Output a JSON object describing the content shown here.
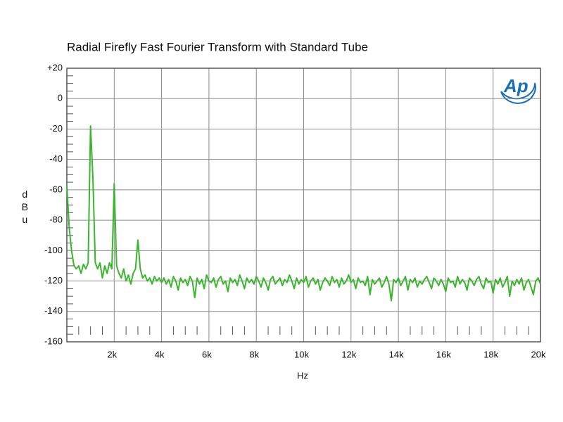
{
  "chart_data": {
    "type": "line",
    "title": "Radial Firefly Fast Fourier Transform with Standard Tube",
    "x_label": "Hz",
    "y_label": "dBu",
    "logo": "Ap",
    "color": "#3cb52e",
    "grid": true,
    "xlim": [
      0,
      20000
    ],
    "ylim": [
      -160,
      20
    ],
    "xticks": [
      {
        "value": 2000,
        "label": "2k"
      },
      {
        "value": 4000,
        "label": "4k"
      },
      {
        "value": 6000,
        "label": "6k"
      },
      {
        "value": 8000,
        "label": "8k"
      },
      {
        "value": 10000,
        "label": "10k"
      },
      {
        "value": 12000,
        "label": "12k"
      },
      {
        "value": 14000,
        "label": "14k"
      },
      {
        "value": 16000,
        "label": "16k"
      },
      {
        "value": 18000,
        "label": "18k"
      },
      {
        "value": 20000,
        "label": "20k"
      }
    ],
    "yticks": [
      {
        "value": 20,
        "label": "+20"
      },
      0,
      -20,
      -40,
      -60,
      -80,
      -100,
      -120,
      -140,
      -160
    ],
    "x": [
      0,
      100,
      200,
      300,
      400,
      500,
      600,
      700,
      800,
      900,
      1000,
      1100,
      1200,
      1300,
      1400,
      1500,
      1600,
      1700,
      1800,
      1900,
      2000,
      2100,
      2200,
      2300,
      2400,
      2500,
      2600,
      2700,
      2800,
      2900,
      3000,
      3100,
      3200,
      3300,
      3400,
      3500,
      3600,
      3700,
      3800,
      3900,
      4000,
      4100,
      4200,
      4300,
      4400,
      4500,
      4600,
      4700,
      4800,
      4900,
      5000,
      5100,
      5200,
      5300,
      5400,
      5500,
      5600,
      5700,
      5800,
      5900,
      6000,
      6100,
      6200,
      6300,
      6400,
      6500,
      6600,
      6700,
      6800,
      6900,
      7000,
      7100,
      7200,
      7300,
      7400,
      7500,
      7600,
      7700,
      7800,
      7900,
      8000,
      8100,
      8200,
      8300,
      8400,
      8500,
      8600,
      8700,
      8800,
      8900,
      9000,
      9100,
      9200,
      9300,
      9400,
      9500,
      9600,
      9700,
      9800,
      9900,
      10000,
      10100,
      10200,
      10300,
      10400,
      10500,
      10600,
      10700,
      10800,
      10900,
      11000,
      11100,
      11200,
      11300,
      11400,
      11500,
      11600,
      11700,
      11800,
      11900,
      12000,
      12100,
      12200,
      12300,
      12400,
      12500,
      12600,
      12700,
      12800,
      12900,
      13000,
      13100,
      13200,
      13300,
      13400,
      13500,
      13600,
      13700,
      13800,
      13900,
      14000,
      14100,
      14200,
      14300,
      14400,
      14500,
      14600,
      14700,
      14800,
      14900,
      15000,
      15100,
      15200,
      15300,
      15400,
      15500,
      15600,
      15700,
      15800,
      15900,
      16000,
      16100,
      16200,
      16300,
      16400,
      16500,
      16600,
      16700,
      16800,
      16900,
      17000,
      17100,
      17200,
      17300,
      17400,
      17500,
      17600,
      17700,
      17800,
      17900,
      18000,
      18100,
      18200,
      18300,
      18400,
      18500,
      18600,
      18700,
      18800,
      18900,
      19000,
      19100,
      19200,
      19300,
      19400,
      19500,
      19600,
      19700,
      19800,
      19900,
      20000
    ],
    "values": [
      -57,
      -85,
      -100,
      -110,
      -112,
      -110,
      -115,
      -109,
      -112,
      -108,
      -18,
      -52,
      -108,
      -112,
      -108,
      -118,
      -110,
      -115,
      -108,
      -112,
      -56,
      -110,
      -115,
      -118,
      -112,
      -120,
      -116,
      -122,
      -115,
      -112,
      -93,
      -112,
      -118,
      -116,
      -120,
      -118,
      -122,
      -117,
      -120,
      -118,
      -121,
      -118,
      -122,
      -119,
      -124,
      -117,
      -120,
      -126,
      -118,
      -121,
      -119,
      -123,
      -117,
      -120,
      -131,
      -118,
      -122,
      -119,
      -125,
      -116,
      -120,
      -121,
      -118,
      -124,
      -119,
      -117,
      -122,
      -120,
      -127,
      -118,
      -121,
      -119,
      -123,
      -116,
      -120,
      -125,
      -118,
      -121,
      -119,
      -122,
      -117,
      -120,
      -124,
      -118,
      -121,
      -126,
      -119,
      -117,
      -122,
      -120,
      -118,
      -123,
      -119,
      -121,
      -116,
      -120,
      -125,
      -118,
      -122,
      -119,
      -121,
      -117,
      -124,
      -120,
      -118,
      -122,
      -119,
      -126,
      -121,
      -118,
      -120,
      -123,
      -117,
      -121,
      -119,
      -124,
      -118,
      -122,
      -120,
      -116,
      -121,
      -119,
      -125,
      -118,
      -121,
      -120,
      -123,
      -117,
      -129,
      -119,
      -122,
      -120,
      -118,
      -124,
      -121,
      -117,
      -122,
      -133,
      -119,
      -121,
      -118,
      -123,
      -120,
      -117,
      -126,
      -119,
      -121,
      -118,
      -124,
      -120,
      -122,
      -119,
      -117,
      -121,
      -125,
      -118,
      -120,
      -123,
      -119,
      -122,
      -127,
      -118,
      -121,
      -120,
      -124,
      -117,
      -122,
      -119,
      -121,
      -126,
      -118,
      -120,
      -123,
      -119,
      -117,
      -122,
      -125,
      -118,
      -121,
      -120,
      -128,
      -119,
      -122,
      -118,
      -124,
      -121,
      -117,
      -130,
      -120,
      -123,
      -119,
      -122,
      -118,
      -126,
      -121,
      -119,
      -124,
      -129,
      -120,
      -118,
      -122
    ]
  }
}
